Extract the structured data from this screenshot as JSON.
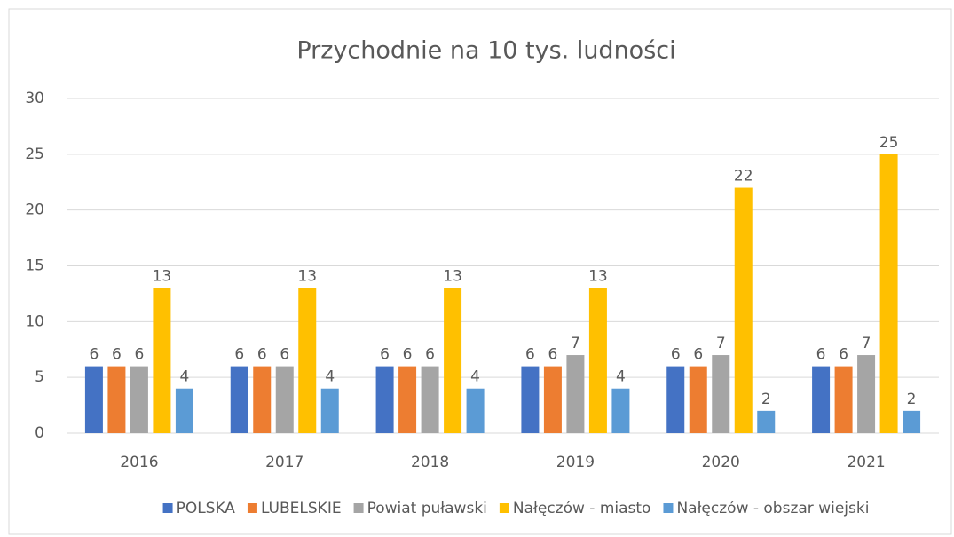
{
  "chart_data": {
    "type": "bar",
    "title": "Przychodnie na 10 tys. ludności",
    "categories": [
      "2016",
      "2017",
      "2018",
      "2019",
      "2020",
      "2021"
    ],
    "series": [
      {
        "name": "POLSKA",
        "color": "#4472c4",
        "values": [
          6,
          6,
          6,
          6,
          6,
          6
        ]
      },
      {
        "name": "LUBELSKIE",
        "color": "#ed7d31",
        "values": [
          6,
          6,
          6,
          6,
          6,
          6
        ]
      },
      {
        "name": "Powiat puławski",
        "color": "#a5a5a5",
        "values": [
          6,
          6,
          6,
          7,
          7,
          7
        ]
      },
      {
        "name": "Nałęczów - miasto",
        "color": "#ffc000",
        "values": [
          13,
          13,
          13,
          13,
          22,
          25
        ]
      },
      {
        "name": "Nałęczów - obszar wiejski",
        "color": "#5b9bd5",
        "values": [
          4,
          4,
          4,
          4,
          2,
          2
        ]
      }
    ],
    "ylim": [
      0,
      30
    ],
    "yticks": [
      0,
      5,
      10,
      15,
      20,
      25,
      30
    ],
    "grid": true,
    "legend": "bottom"
  }
}
